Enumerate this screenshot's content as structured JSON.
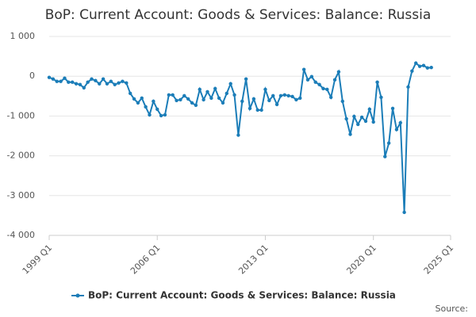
{
  "chart_data": {
    "type": "line",
    "title": "BoP: Current Account: Goods & Services: Balance: Russia",
    "source": "Source:",
    "categories": [
      "1999 Q1",
      null,
      null,
      null,
      null,
      null,
      null,
      null,
      null,
      null,
      null,
      null,
      null,
      null,
      null,
      null,
      null,
      null,
      null,
      null,
      null,
      null,
      null,
      null,
      null,
      null,
      null,
      null,
      "2006 Q1",
      null,
      null,
      null,
      null,
      null,
      null,
      null,
      null,
      null,
      null,
      null,
      null,
      null,
      null,
      null,
      null,
      null,
      null,
      null,
      null,
      null,
      null,
      null,
      null,
      null,
      null,
      null,
      "2013 Q1",
      null,
      null,
      null,
      null,
      null,
      null,
      null,
      null,
      null,
      null,
      null,
      null,
      null,
      null,
      null,
      null,
      null,
      null,
      null,
      null,
      null,
      null,
      null,
      null,
      null,
      null,
      null,
      "2020 Q1",
      null,
      null,
      null,
      null,
      null,
      null,
      null,
      null,
      null,
      null,
      null,
      null,
      null,
      null,
      null,
      null,
      null,
      null,
      null,
      "2025 Q1"
    ],
    "series": [
      {
        "name": "BoP: Current Account: Goods & Services: Balance: Russia",
        "color": "#1b7db8",
        "values": [
          -30,
          -70,
          -130,
          -130,
          -50,
          -150,
          -150,
          -190,
          -210,
          -290,
          -150,
          -70,
          -110,
          -190,
          -70,
          -190,
          -130,
          -210,
          -170,
          -130,
          -170,
          -430,
          -570,
          -670,
          -550,
          -770,
          -970,
          -630,
          -830,
          -990,
          -970,
          -470,
          -470,
          -610,
          -590,
          -490,
          -570,
          -670,
          -730,
          -330,
          -590,
          -390,
          -550,
          -310,
          -550,
          -670,
          -430,
          -190,
          -470,
          -1480,
          -630,
          -70,
          -810,
          -570,
          -850,
          -850,
          -330,
          -610,
          -490,
          -710,
          -490,
          -470,
          -490,
          -510,
          -590,
          -550,
          170,
          -90,
          -10,
          -150,
          -210,
          -310,
          -330,
          -530,
          -90,
          110,
          -630,
          -1070,
          -1460,
          -1010,
          -1210,
          -1030,
          -1130,
          -830,
          -1150,
          -150,
          -530,
          -2020,
          -1680,
          -810,
          -1340,
          -1170,
          -3420,
          -270,
          130,
          330,
          250,
          270,
          210,
          220,
          null,
          null,
          null,
          null,
          null
        ]
      }
    ],
    "ylim": [
      -4000,
      1000
    ],
    "yticks": [
      {
        "value": -4000,
        "label": "-4 000"
      },
      {
        "value": -3000,
        "label": "-3 000"
      },
      {
        "value": -2000,
        "label": "-2 000"
      },
      {
        "value": -1000,
        "label": "-1 000"
      },
      0,
      {
        "value": 1000,
        "label": "1 000"
      }
    ],
    "grid": true
  }
}
